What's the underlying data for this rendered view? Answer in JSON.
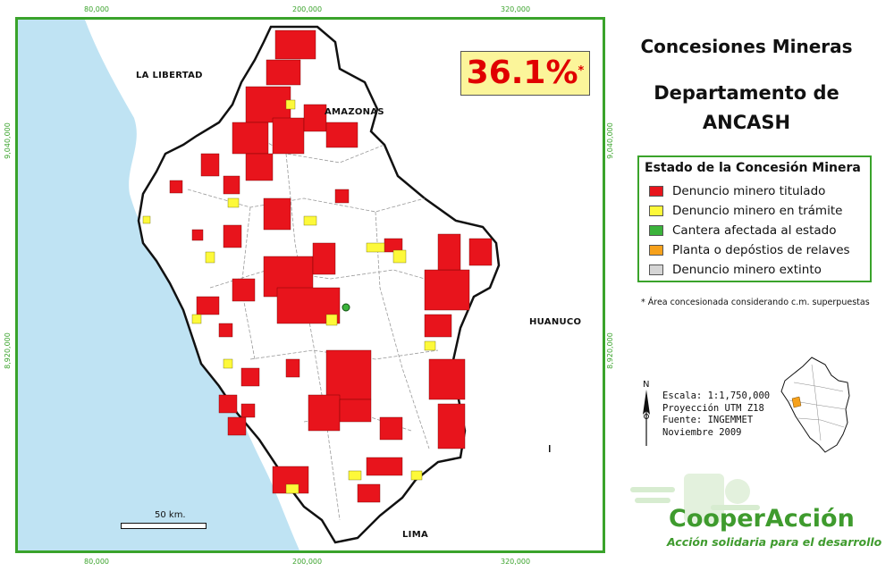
{
  "map": {
    "ticks_x": [
      "80,000",
      "200,000",
      "320,000"
    ],
    "ticks_y": [
      "9,040,000",
      "8,920,000"
    ],
    "regions": {
      "la_libertad": "LA LIBERTAD",
      "amazonas": "AMAZONAS",
      "huanuco": "HUANUCO",
      "lima": "LIMA"
    },
    "percentage": "36.1%",
    "percentage_mark": "*",
    "scale_label": "50 km."
  },
  "panel": {
    "title_line1": "Concesiones Mineras",
    "title_line2": "Departamento de",
    "title_line3": "ANCASH"
  },
  "legend": {
    "title": "Estado de la Concesión Minera",
    "items": [
      {
        "label": "Denuncio minero titulado",
        "color": "#e8141c"
      },
      {
        "label": "Denuncio minero en trámite",
        "color": "#fdf93a"
      },
      {
        "label": "Cantera afectada al estado",
        "color": "#3bb33b"
      },
      {
        "label": "Planta o depóstios de relaves",
        "color": "#f6a11b"
      },
      {
        "label": "Denuncio minero extinto",
        "color": "#d5d5d5"
      }
    ]
  },
  "footnote": "* Área concesionada considerando c.m. superpuestas",
  "north_label": "N",
  "info": {
    "scale": "Escala: 1:1,750,000",
    "projection": "Proyección UTM Z18",
    "source": "Fuente: INGEMMET",
    "date": "Noviembre 2009"
  },
  "brand": {
    "name": "CooperAcción",
    "tagline": "Acción solidaria para el desarrollo"
  },
  "colors": {
    "frame": "#3aa32b",
    "ocean": "#bfe3f3",
    "titulado": "#e8141c",
    "tramite": "#fdf93a",
    "brand": "#3f9b2e"
  }
}
